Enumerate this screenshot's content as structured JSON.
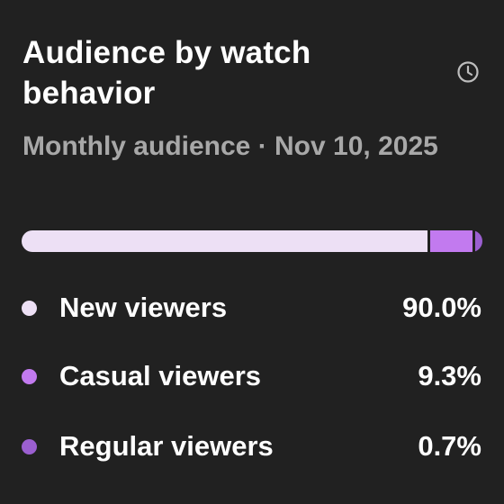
{
  "card": {
    "title": "Audience by watch behavior",
    "subtitle": "Monthly audience · Nov 10, 2025",
    "icon": "history-icon"
  },
  "chart_data": {
    "type": "bar",
    "categories": [
      "New viewers",
      "Casual viewers",
      "Regular viewers"
    ],
    "values": [
      90.0,
      9.3,
      0.7
    ],
    "unit": "%",
    "stacked": true,
    "colors": [
      "#ede0f5",
      "#c27aef",
      "#9b5fd0"
    ]
  },
  "legend": [
    {
      "label": "New viewers",
      "value": "90.0%",
      "color": "#ede0f5"
    },
    {
      "label": "Casual viewers",
      "value": "9.3%",
      "color": "#c27aef"
    },
    {
      "label": "Regular viewers",
      "value": "0.7%",
      "color": "#9b5fd0"
    }
  ]
}
